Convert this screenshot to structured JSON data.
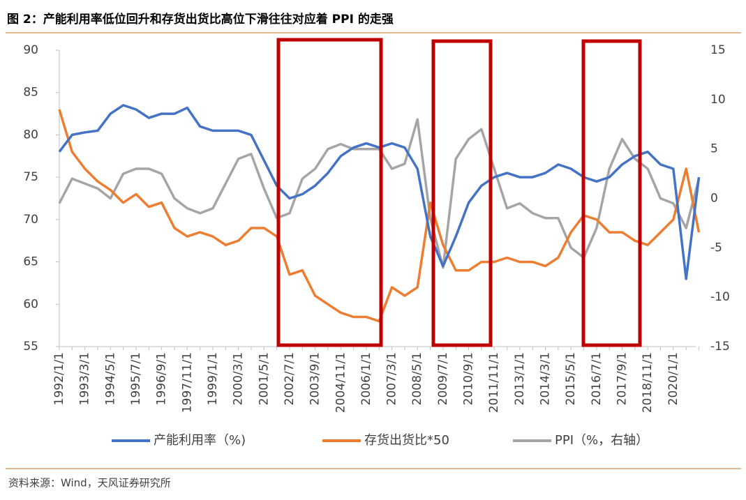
{
  "chart_data": {
    "type": "line",
    "title": "图 2：产能利用率低位回升和存货出货比高位下滑往往对应着 PPI 的走强",
    "source": "资料来源：Wind，天风证券研究所",
    "categories": [
      "1992/1/1",
      null,
      "1993/3/1",
      null,
      "1994/5/1",
      null,
      "1995/7/1",
      null,
      "1996/9/1",
      null,
      "1997/11/1",
      null,
      "1999/1/1",
      null,
      "2000/3/1",
      null,
      "2001/5/1",
      null,
      "2002/7/1",
      null,
      "2003/9/1",
      null,
      "2004/11/1",
      null,
      "2006/1/1",
      null,
      "2007/3/1",
      null,
      "2008/5/1",
      null,
      "2009/7/1",
      null,
      "2010/9/1",
      null,
      "2011/11/1",
      null,
      "2013/1/1",
      null,
      "2014/3/1",
      null,
      "2015/5/1",
      null,
      "2016/7/1",
      null,
      "2017/9/1",
      null,
      "2018/11/1",
      null,
      "2020/1/1",
      null,
      null
    ],
    "series": [
      {
        "name": "产能利用率（%)",
        "color": "#4472c4",
        "values": [
          78,
          80,
          80.3,
          80.5,
          82.5,
          83.5,
          83,
          82,
          82.5,
          82.5,
          83.2,
          81,
          80.5,
          80.5,
          80.5,
          80,
          77,
          74,
          72.5,
          73,
          74,
          75.5,
          77.5,
          78.5,
          79,
          78.5,
          79,
          78.5,
          76,
          68,
          64.5,
          68,
          72,
          74,
          75,
          75.5,
          75,
          75,
          75.5,
          76.5,
          76,
          75,
          74.5,
          75,
          76.5,
          77.5,
          78,
          76.5,
          76,
          63,
          75
        ]
      },
      {
        "name": "存货出货比*50",
        "color": "#ed7d31",
        "values": [
          83,
          78,
          76,
          74.5,
          73.5,
          72,
          73,
          71.5,
          72,
          69,
          68,
          68.5,
          68,
          67,
          67.5,
          69,
          69,
          68,
          63.5,
          64,
          61,
          60,
          59,
          58.5,
          58.5,
          58,
          62,
          61,
          62,
          72,
          67,
          64,
          64,
          65,
          65,
          65.5,
          65,
          65,
          64.5,
          65.5,
          68.5,
          70.5,
          70,
          68.5,
          68.5,
          67.5,
          67,
          68.5,
          70,
          76,
          68.5
        ]
      },
      {
        "name": "PPI（%，右轴）",
        "color": "#a5a5a5",
        "axis": "y2",
        "values": [
          -0.5,
          2,
          1.5,
          1,
          0,
          2.5,
          3,
          3,
          2.5,
          0,
          -1,
          -1.5,
          -1,
          1.5,
          4,
          4.5,
          1,
          -2,
          -1.5,
          2,
          3,
          5,
          5.5,
          5,
          5,
          5,
          3,
          3.5,
          8,
          -2,
          -7,
          4,
          6,
          7,
          3,
          -1,
          -0.5,
          -1.5,
          -2,
          -2,
          -5,
          -6,
          -3,
          3,
          6,
          4,
          3,
          0,
          -0.5,
          -3,
          2
        ]
      }
    ],
    "ylim": [
      55,
      90
    ],
    "yticks": [
      55,
      60,
      65,
      70,
      75,
      80,
      85,
      90
    ],
    "y2lim": [
      -15,
      15
    ],
    "y2ticks": [
      -15,
      -10,
      -5,
      0,
      5,
      10,
      15
    ]
  }
}
